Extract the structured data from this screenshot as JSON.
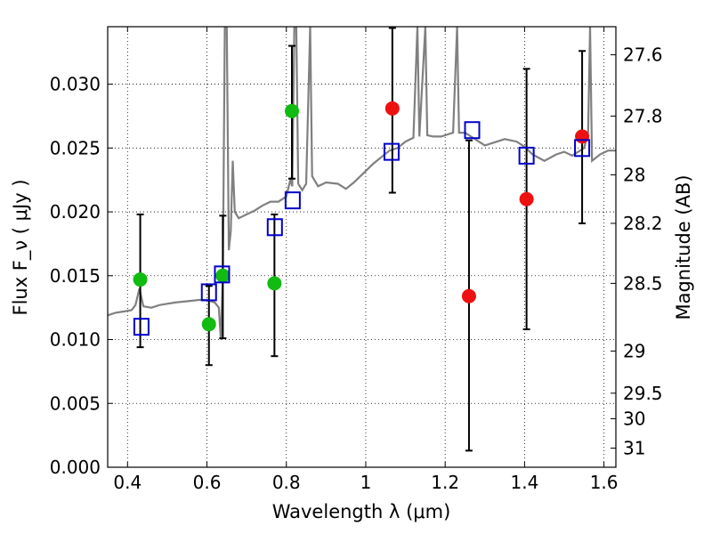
{
  "chart_data": {
    "type": "scatter",
    "xlabel": "Wavelength  λ (μm)",
    "ylabel": "Flux  F_ν  ( μJy )",
    "y2label": "Magnitude (AB)",
    "xlim": [
      0.35,
      1.63
    ],
    "ylim": [
      0.0,
      0.0345
    ],
    "xticks": [
      0.4,
      0.6,
      0.8,
      1.0,
      1.2,
      1.4,
      1.6
    ],
    "xtick_labels": [
      "0.4",
      "0.6",
      "0.8",
      "1",
      "1.2",
      "1.4",
      "1.6"
    ],
    "yticks": [
      0.0,
      0.005,
      0.01,
      0.015,
      0.02,
      0.025,
      0.03
    ],
    "ytick_labels": [
      "0.000",
      "0.005",
      "0.010",
      "0.015",
      "0.020",
      "0.025",
      "0.030"
    ],
    "y2ticks": [
      {
        "label": "27.6",
        "flux": 0.0323
      },
      {
        "label": "27.8",
        "flux": 0.0275
      },
      {
        "label": "28",
        "flux": 0.0229
      },
      {
        "label": "28.2",
        "flux": 0.0191
      },
      {
        "label": "28.5",
        "flux": 0.0144
      },
      {
        "label": "29",
        "flux": 0.0091
      },
      {
        "label": "29.5",
        "flux": 0.0058
      },
      {
        "label": "30",
        "flux": 0.0038
      },
      {
        "label": "31",
        "flux": 0.0015
      }
    ],
    "grid": true,
    "colors": {
      "spectrum": "#808080",
      "green_points": "#11bb11",
      "red_points": "#ee1111",
      "model_boxes": "#0000cc",
      "error_bars": "#000000"
    },
    "spectrum": [
      [
        0.35,
        0.0119
      ],
      [
        0.37,
        0.0121
      ],
      [
        0.39,
        0.0122
      ],
      [
        0.41,
        0.0123
      ],
      [
        0.42,
        0.0127
      ],
      [
        0.43,
        0.014
      ],
      [
        0.44,
        0.0126
      ],
      [
        0.46,
        0.0125
      ],
      [
        0.48,
        0.0127
      ],
      [
        0.5,
        0.0128
      ],
      [
        0.52,
        0.0129
      ],
      [
        0.55,
        0.013
      ],
      [
        0.58,
        0.0131
      ],
      [
        0.6,
        0.0131
      ],
      [
        0.62,
        0.0129
      ],
      [
        0.63,
        0.0125
      ],
      [
        0.635,
        0.01
      ],
      [
        0.64,
        0.015
      ],
      [
        0.645,
        0.0345
      ],
      [
        0.65,
        0.0345
      ],
      [
        0.655,
        0.017
      ],
      [
        0.66,
        0.0185
      ],
      [
        0.665,
        0.024
      ],
      [
        0.67,
        0.02
      ],
      [
        0.68,
        0.0195
      ],
      [
        0.7,
        0.0198
      ],
      [
        0.72,
        0.0201
      ],
      [
        0.74,
        0.0205
      ],
      [
        0.76,
        0.0208
      ],
      [
        0.78,
        0.0208
      ],
      [
        0.8,
        0.0212
      ],
      [
        0.81,
        0.0225
      ],
      [
        0.815,
        0.022
      ],
      [
        0.82,
        0.0345
      ],
      [
        0.825,
        0.0345
      ],
      [
        0.83,
        0.0222
      ],
      [
        0.84,
        0.0217
      ],
      [
        0.85,
        0.0222
      ],
      [
        0.86,
        0.0345
      ],
      [
        0.865,
        0.0228
      ],
      [
        0.88,
        0.022
      ],
      [
        0.9,
        0.0223
      ],
      [
        0.93,
        0.0222
      ],
      [
        0.95,
        0.0218
      ],
      [
        0.97,
        0.0223
      ],
      [
        1.0,
        0.0232
      ],
      [
        1.02,
        0.0238
      ],
      [
        1.04,
        0.0243
      ],
      [
        1.06,
        0.0248
      ],
      [
        1.08,
        0.025
      ],
      [
        1.1,
        0.0255
      ],
      [
        1.12,
        0.0258
      ],
      [
        1.13,
        0.0345
      ],
      [
        1.135,
        0.0259
      ],
      [
        1.15,
        0.0345
      ],
      [
        1.155,
        0.026
      ],
      [
        1.17,
        0.0259
      ],
      [
        1.19,
        0.0259
      ],
      [
        1.2,
        0.026
      ],
      [
        1.22,
        0.0262
      ],
      [
        1.23,
        0.0345
      ],
      [
        1.235,
        0.0262
      ],
      [
        1.25,
        0.0262
      ],
      [
        1.28,
        0.0256
      ],
      [
        1.3,
        0.0252
      ],
      [
        1.32,
        0.0254
      ],
      [
        1.35,
        0.0257
      ],
      [
        1.38,
        0.0255
      ],
      [
        1.4,
        0.0251
      ],
      [
        1.42,
        0.0245
      ],
      [
        1.45,
        0.024
      ],
      [
        1.48,
        0.0245
      ],
      [
        1.5,
        0.0247
      ],
      [
        1.52,
        0.0244
      ],
      [
        1.55,
        0.025
      ],
      [
        1.56,
        0.0262
      ],
      [
        1.565,
        0.0345
      ],
      [
        1.57,
        0.024
      ],
      [
        1.59,
        0.0245
      ],
      [
        1.61,
        0.0248
      ],
      [
        1.63,
        0.0248
      ]
    ],
    "green_points": [
      {
        "x": 0.432,
        "y": 0.0147,
        "yerr": [
          0.0094,
          0.0198
        ]
      },
      {
        "x": 0.605,
        "y": 0.0112,
        "yerr": [
          0.008,
          0.0142
        ]
      },
      {
        "x": 0.64,
        "y": 0.015,
        "yerr": [
          0.0101,
          0.0197
        ]
      },
      {
        "x": 0.77,
        "y": 0.0144,
        "yerr": [
          0.0087,
          0.0198
        ]
      },
      {
        "x": 0.814,
        "y": 0.0279,
        "yerr": [
          0.0226,
          0.033
        ]
      }
    ],
    "red_points": [
      {
        "x": 1.067,
        "y": 0.0281,
        "yerr": [
          0.0215,
          0.0344
        ]
      },
      {
        "x": 1.26,
        "y": 0.0134,
        "yerr": [
          0.0013,
          0.0256
        ]
      },
      {
        "x": 1.405,
        "y": 0.021,
        "yerr": [
          0.0108,
          0.0312
        ]
      },
      {
        "x": 1.545,
        "y": 0.0259,
        "yerr": [
          0.0191,
          0.0326
        ]
      }
    ],
    "model_boxes": [
      {
        "x": 0.435,
        "y": 0.011
      },
      {
        "x": 0.605,
        "y": 0.0137
      },
      {
        "x": 0.638,
        "y": 0.0151
      },
      {
        "x": 0.771,
        "y": 0.0188
      },
      {
        "x": 0.816,
        "y": 0.0209
      },
      {
        "x": 1.065,
        "y": 0.0247
      },
      {
        "x": 1.268,
        "y": 0.0264
      },
      {
        "x": 1.405,
        "y": 0.0244
      },
      {
        "x": 1.545,
        "y": 0.025
      }
    ]
  }
}
